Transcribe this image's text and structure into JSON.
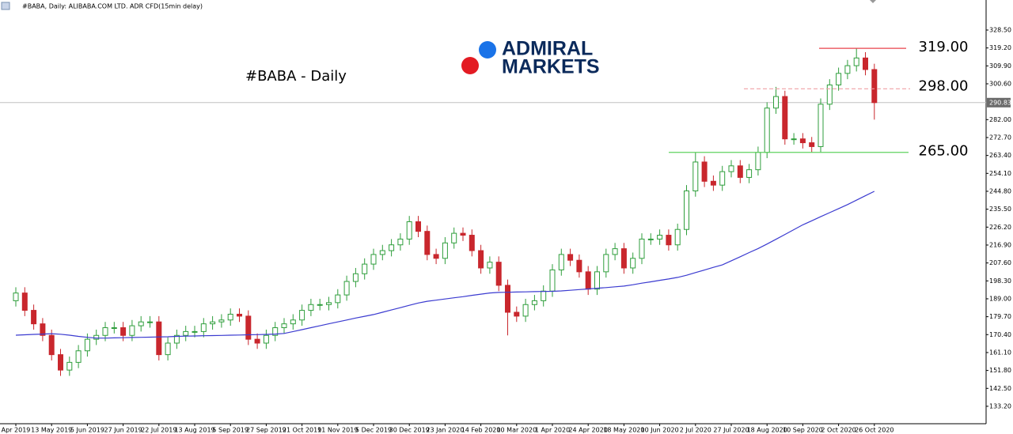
{
  "chart_data": {
    "type": "candlestick",
    "header": "#BABA, Daily:  ALIBABA.COM LTD. ADR CFD(15min delay)",
    "title": "#BABA - Daily",
    "logo_lines": [
      "ADMIRAL",
      "MARKETS"
    ],
    "up_color": "#2f9e3c",
    "down_color": "#c9272d",
    "categories": [
      "Apr 2019",
      null,
      null,
      null,
      "13 May 2019",
      null,
      null,
      null,
      "5 Jun 2019",
      null,
      null,
      null,
      "27 Jun 2019",
      null,
      null,
      null,
      "22 Jul 2019",
      null,
      null,
      null,
      "13 Aug 2019",
      null,
      null,
      null,
      "5 Sep 2019",
      null,
      null,
      null,
      "27 Sep 2019",
      null,
      null,
      null,
      "21 Oct 2019",
      null,
      null,
      null,
      "11 Nov 2019",
      null,
      null,
      null,
      "5 Dec 2019",
      null,
      null,
      null,
      "30 Dec 2019",
      null,
      null,
      null,
      "23 Jan 2020",
      null,
      null,
      null,
      "14 Feb 2020",
      null,
      null,
      null,
      "10 Mar 2020",
      null,
      null,
      null,
      "1 Apr 2020",
      null,
      null,
      null,
      "24 Apr 2020",
      null,
      null,
      null,
      "18 May 2020",
      null,
      null,
      null,
      "10 Jun 2020",
      null,
      null,
      null,
      "2 Jul 2020",
      null,
      null,
      null,
      "27 Jul 2020",
      null,
      null,
      null,
      "18 Aug 2020",
      null,
      null,
      null,
      "10 Sep 2020",
      null,
      null,
      null,
      "2 Oct 2020",
      null,
      null,
      null,
      "26 Oct 2020"
    ],
    "open": [
      188,
      192,
      183,
      176,
      170,
      160,
      152,
      156,
      162,
      168,
      170,
      174,
      174,
      170,
      175,
      177,
      177,
      160,
      166,
      170,
      172,
      172,
      176,
      177,
      178,
      181,
      180,
      168,
      166,
      170,
      174,
      176,
      178,
      183,
      186,
      186,
      187,
      191,
      198,
      202,
      207,
      212,
      214,
      217,
      220,
      229,
      224,
      212,
      210,
      218,
      223,
      222,
      214,
      205,
      208,
      196,
      182,
      180,
      186,
      188,
      193,
      204,
      212,
      209,
      203,
      194,
      203,
      212,
      215,
      205,
      210,
      220,
      220,
      222,
      217,
      225,
      245,
      260,
      250,
      248,
      255,
      258,
      252,
      256,
      265,
      288,
      294,
      272,
      272,
      270,
      268,
      290,
      300,
      306,
      310,
      314,
      308
    ],
    "high": [
      195,
      195,
      186,
      179,
      173,
      163,
      159,
      165,
      171,
      173,
      177,
      177,
      177,
      178,
      180,
      180,
      180,
      169,
      173,
      175,
      175,
      179,
      180,
      181,
      184,
      184,
      183,
      171,
      173,
      177,
      179,
      181,
      186,
      189,
      189,
      190,
      194,
      201,
      205,
      210,
      215,
      217,
      220,
      223,
      232,
      232,
      227,
      215,
      221,
      226,
      226,
      225,
      217,
      211,
      211,
      199,
      185,
      189,
      191,
      196,
      207,
      215,
      215,
      212,
      206,
      206,
      215,
      218,
      218,
      213,
      223,
      223,
      225,
      225,
      228,
      248,
      265,
      263,
      253,
      258,
      261,
      261,
      259,
      268,
      291,
      299,
      297,
      275,
      275,
      273,
      293,
      303,
      309,
      313,
      319,
      317,
      311
    ],
    "low": [
      185,
      180,
      173,
      167,
      157,
      149,
      149,
      153,
      159,
      165,
      167,
      171,
      167,
      167,
      172,
      174,
      157,
      157,
      163,
      167,
      169,
      169,
      173,
      174,
      175,
      177,
      165,
      163,
      163,
      167,
      171,
      173,
      175,
      180,
      183,
      183,
      184,
      188,
      195,
      199,
      204,
      209,
      211,
      214,
      217,
      221,
      209,
      207,
      207,
      215,
      219,
      211,
      202,
      202,
      193,
      170,
      177,
      177,
      183,
      185,
      190,
      201,
      206,
      200,
      191,
      191,
      200,
      209,
      202,
      202,
      207,
      217,
      217,
      214,
      214,
      222,
      242,
      247,
      245,
      245,
      252,
      249,
      249,
      253,
      262,
      285,
      269,
      269,
      267,
      265,
      265,
      287,
      297,
      303,
      307,
      305,
      282
    ],
    "close": [
      192,
      183,
      176,
      170,
      160,
      152,
      156,
      162,
      168,
      170,
      174,
      174,
      170,
      175,
      177,
      177,
      160,
      166,
      170,
      172,
      172,
      176,
      177,
      178,
      181,
      180,
      168,
      166,
      170,
      174,
      176,
      178,
      183,
      186,
      186,
      187,
      191,
      198,
      202,
      207,
      212,
      214,
      217,
      220,
      229,
      224,
      212,
      210,
      218,
      223,
      222,
      214,
      205,
      208,
      196,
      182,
      180,
      186,
      188,
      193,
      204,
      212,
      209,
      203,
      194,
      203,
      212,
      215,
      205,
      210,
      220,
      220,
      222,
      217,
      225,
      245,
      260,
      250,
      248,
      255,
      258,
      252,
      256,
      265,
      288,
      294,
      272,
      272,
      270,
      268,
      290,
      300,
      306,
      310,
      314,
      308,
      290.83
    ],
    "moving_average": {
      "color": "#3b3bd0",
      "values": [
        170.1,
        170.3,
        170.5,
        170.7,
        170.9,
        170.6,
        170.1,
        169.5,
        169.0,
        168.6,
        168.6,
        168.7,
        168.8,
        168.9,
        169.0,
        169.1,
        169.2,
        169.3,
        169.5,
        169.6,
        169.7,
        169.8,
        169.9,
        170.0,
        170.1,
        170.2,
        170.3,
        170.4,
        170.5,
        170.7,
        171.0,
        172.0,
        173.0,
        174.0,
        175.0,
        176.0,
        177.0,
        178.0,
        179.0,
        179.9,
        180.8,
        182.0,
        183.2,
        184.4,
        185.6,
        186.8,
        187.7,
        188.3,
        188.9,
        189.5,
        190.1,
        190.8,
        191.4,
        192.0,
        192.3,
        192.4,
        192.5,
        192.6,
        192.7,
        192.8,
        192.9,
        193.1,
        193.4,
        193.8,
        194.1,
        194.5,
        194.8,
        195.2,
        195.6,
        196.3,
        197.1,
        197.8,
        198.6,
        199.3,
        200.1,
        201.2,
        202.6,
        203.9,
        205.3,
        206.6,
        208.7,
        210.8,
        213.0,
        215.1,
        217.4,
        219.9,
        222.4,
        224.9,
        227.4,
        229.5,
        231.6,
        233.7,
        235.8,
        237.9,
        240.2,
        242.5,
        244.8
      ]
    },
    "levels": [
      {
        "value": 319,
        "label": "319.00",
        "color": "#e8434b",
        "style": "solid"
      },
      {
        "value": 298,
        "label": "298.00",
        "color": "#f0a0a4",
        "style": "dashed"
      },
      {
        "value": 265,
        "label": "265.00",
        "color": "#5fd35f",
        "style": "solid"
      }
    ],
    "last_price": 290.83,
    "ylim": [
      124.15,
      344.09
    ],
    "yticks": [
      {
        "value": 328.5,
        "label": "328.50"
      },
      {
        "value": 319.2,
        "label": "319.20"
      },
      {
        "value": 309.9,
        "label": "309.90"
      },
      {
        "value": 300.6,
        "label": "300.60"
      },
      {
        "value": 282,
        "label": "282.00"
      },
      {
        "value": 272.7,
        "label": "272.70"
      },
      {
        "value": 263.4,
        "label": "263.40"
      },
      {
        "value": 254.1,
        "label": "254.10"
      },
      {
        "value": 244.8,
        "label": "244.80"
      },
      {
        "value": 235.5,
        "label": "235.50"
      },
      {
        "value": 226.2,
        "label": "226.20"
      },
      {
        "value": 216.9,
        "label": "216.90"
      },
      {
        "value": 207.6,
        "label": "207.60"
      },
      {
        "value": 198.3,
        "label": "198.30"
      },
      {
        "value": 189,
        "label": "189.00"
      },
      {
        "value": 179.7,
        "label": "179.70"
      },
      {
        "value": 170.4,
        "label": "170.40"
      },
      {
        "value": 161.1,
        "label": "161.10"
      },
      {
        "value": 151.8,
        "label": "151.80"
      },
      {
        "value": 142.5,
        "label": "142.50"
      },
      {
        "value": 133.2,
        "label": "133.20"
      }
    ]
  }
}
